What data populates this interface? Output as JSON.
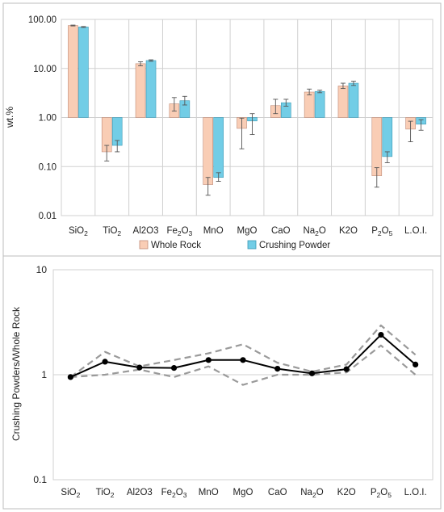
{
  "chart_data": [
    {
      "type": "bar",
      "ylabel": "wt.%",
      "yscale": "log",
      "ylim": [
        0.01,
        100
      ],
      "yticks": [
        "0.01",
        "0.10",
        "1.00",
        "10.00",
        "100.00"
      ],
      "grid": true,
      "legend_position": "bottom",
      "categories": [
        {
          "base": "SiO",
          "sub": "2"
        },
        {
          "base": "TiO",
          "sub": "2"
        },
        {
          "base": "Al2O3",
          "sub": ""
        },
        {
          "base": "Fe",
          "sub": "2",
          "base2": "O",
          "sub2": "3"
        },
        {
          "base": "MnO",
          "sub": ""
        },
        {
          "base": "MgO",
          "sub": ""
        },
        {
          "base": "CaO",
          "sub": ""
        },
        {
          "base": "Na",
          "sub": "2",
          "base2": "O",
          "sub2": ""
        },
        {
          "base": "K2O",
          "sub": ""
        },
        {
          "base": "P",
          "sub": "2",
          "base2": "O",
          "sub2": "5"
        },
        {
          "base": "L.O.I.",
          "sub": ""
        }
      ],
      "series": [
        {
          "name": "Whole Rock",
          "color": "#f9cdb5",
          "values": [
            75,
            0.2,
            12.5,
            1.9,
            0.043,
            0.6,
            1.75,
            3.3,
            4.4,
            0.065,
            0.58
          ],
          "err_low": [
            73.5,
            0.13,
            11.3,
            1.35,
            0.026,
            0.23,
            1.2,
            2.9,
            3.9,
            0.038,
            0.32
          ],
          "err_high": [
            76.5,
            0.27,
            13.7,
            2.55,
            0.06,
            0.97,
            2.35,
            3.8,
            5.0,
            0.095,
            0.84
          ]
        },
        {
          "name": "Crushing Powder",
          "color": "#72cde6",
          "values": [
            70,
            0.27,
            14.5,
            2.2,
            0.06,
            0.85,
            2.0,
            3.4,
            5.0,
            0.16,
            0.73
          ],
          "err_low": [
            68.5,
            0.2,
            14.0,
            1.8,
            0.05,
            0.45,
            1.7,
            3.2,
            4.5,
            0.12,
            0.55
          ],
          "err_high": [
            71.5,
            0.34,
            15.0,
            2.7,
            0.075,
            1.2,
            2.35,
            3.6,
            5.5,
            0.2,
            0.9
          ]
        }
      ]
    },
    {
      "type": "line",
      "ylabel": "Crushing Powders/Whole Rock",
      "yscale": "log",
      "ylim": [
        0.1,
        10
      ],
      "yticks": [
        "0.1",
        "1",
        "10"
      ],
      "grid": true,
      "categories": [
        {
          "base": "SiO",
          "sub": "2"
        },
        {
          "base": "TiO",
          "sub": "2"
        },
        {
          "base": "Al2O3",
          "sub": ""
        },
        {
          "base": "Fe",
          "sub": "2",
          "base2": "O",
          "sub2": "3"
        },
        {
          "base": "MnO",
          "sub": ""
        },
        {
          "base": "MgO",
          "sub": ""
        },
        {
          "base": "CaO",
          "sub": ""
        },
        {
          "base": "Na",
          "sub": "2",
          "base2": "O",
          "sub2": ""
        },
        {
          "base": "K2O",
          "sub": ""
        },
        {
          "base": "P",
          "sub": "2",
          "base2": "O",
          "sub2": "5"
        },
        {
          "base": "L.O.I."
        }
      ],
      "series": [
        {
          "role": "ratio",
          "color": "#000000",
          "values": [
            0.95,
            1.33,
            1.17,
            1.16,
            1.38,
            1.38,
            1.14,
            1.03,
            1.13,
            2.4,
            1.25
          ]
        },
        {
          "role": "upper-bound",
          "color": "#9a9a9a",
          "values": [
            0.95,
            1.65,
            1.2,
            1.38,
            1.6,
            1.95,
            1.3,
            1.07,
            1.25,
            2.95,
            1.55
          ]
        },
        {
          "role": "lower-bound",
          "color": "#9a9a9a",
          "values": [
            0.95,
            1.0,
            1.12,
            0.95,
            1.2,
            0.8,
            1.0,
            1.0,
            1.05,
            1.9,
            1.0
          ]
        }
      ]
    }
  ]
}
